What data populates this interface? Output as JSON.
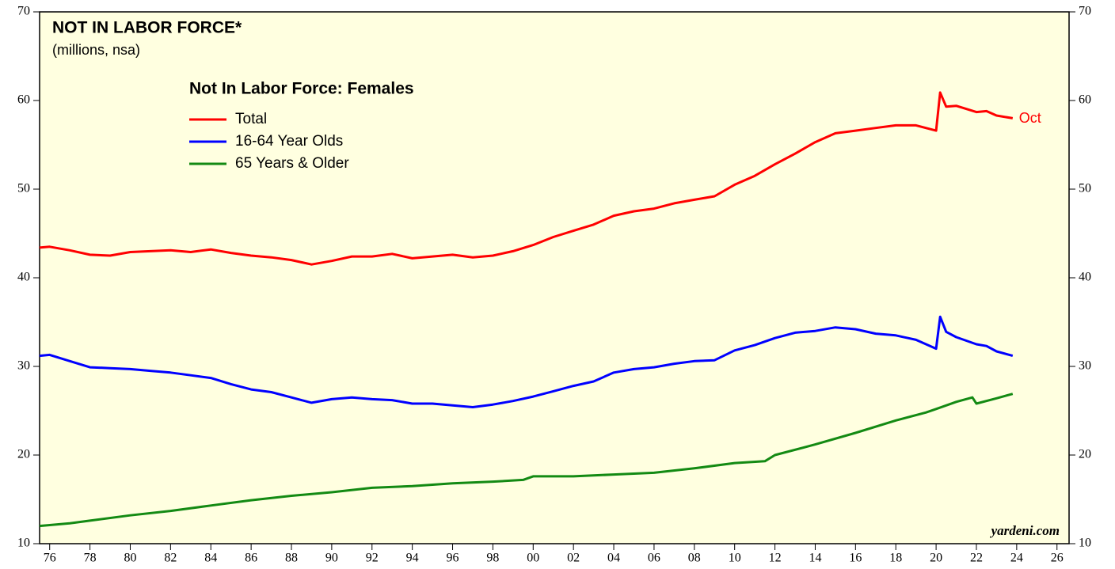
{
  "chart_data": {
    "type": "line",
    "title": "NOT IN LABOR FORCE*",
    "subtitle": "(millions, nsa)",
    "legend_title": "Not In Labor Force: Females",
    "annotation": "Oct",
    "source": "yardeni.com",
    "xlim": [
      1975.5,
      2026.6
    ],
    "ylim": [
      10,
      70
    ],
    "yticks": [
      10,
      20,
      30,
      40,
      50,
      60,
      70
    ],
    "xticks": [
      {
        "value": 1976,
        "label": "76"
      },
      {
        "value": 1978,
        "label": "78"
      },
      {
        "value": 1980,
        "label": "80"
      },
      {
        "value": 1982,
        "label": "82"
      },
      {
        "value": 1984,
        "label": "84"
      },
      {
        "value": 1986,
        "label": "86"
      },
      {
        "value": 1988,
        "label": "88"
      },
      {
        "value": 1990,
        "label": "90"
      },
      {
        "value": 1992,
        "label": "92"
      },
      {
        "value": 1994,
        "label": "94"
      },
      {
        "value": 1996,
        "label": "96"
      },
      {
        "value": 1998,
        "label": "98"
      },
      {
        "value": 2000,
        "label": "00"
      },
      {
        "value": 2002,
        "label": "02"
      },
      {
        "value": 2004,
        "label": "04"
      },
      {
        "value": 2006,
        "label": "06"
      },
      {
        "value": 2008,
        "label": "08"
      },
      {
        "value": 2010,
        "label": "10"
      },
      {
        "value": 2012,
        "label": "12"
      },
      {
        "value": 2014,
        "label": "14"
      },
      {
        "value": 2016,
        "label": "16"
      },
      {
        "value": 2018,
        "label": "18"
      },
      {
        "value": 2020,
        "label": "20"
      },
      {
        "value": 2022,
        "label": "22"
      },
      {
        "value": 2024,
        "label": "24"
      },
      {
        "value": 2026,
        "label": "26"
      }
    ],
    "series": [
      {
        "name": "Total",
        "color": "#ff0000",
        "x": [
          1975.5,
          1976,
          1977,
          1978,
          1979,
          1980,
          1981,
          1982,
          1983,
          1984,
          1985,
          1986,
          1987,
          1988,
          1989,
          1990,
          1991,
          1992,
          1993,
          1994,
          1995,
          1996,
          1997,
          1998,
          1999,
          2000,
          2001,
          2002,
          2003,
          2004,
          2005,
          2006,
          2007,
          2008,
          2009,
          2010,
          2011,
          2012,
          2013,
          2014,
          2015,
          2016,
          2017,
          2018,
          2019,
          2020,
          2020.2,
          2020.5,
          2021,
          2022,
          2022.5,
          2023,
          2023.8
        ],
        "values": [
          43.4,
          43.5,
          43.1,
          42.6,
          42.5,
          42.9,
          43.0,
          43.1,
          42.9,
          43.2,
          42.8,
          42.5,
          42.3,
          42.0,
          41.5,
          41.9,
          42.4,
          42.4,
          42.7,
          42.2,
          42.4,
          42.6,
          42.3,
          42.5,
          43.0,
          43.7,
          44.6,
          45.3,
          46.0,
          47.0,
          47.5,
          47.8,
          48.4,
          48.8,
          49.2,
          50.5,
          51.5,
          52.8,
          54.0,
          55.3,
          56.3,
          56.6,
          56.9,
          57.2,
          57.2,
          56.6,
          60.9,
          59.3,
          59.4,
          58.7,
          58.8,
          58.3,
          58.0
        ]
      },
      {
        "name": "16-64 Year Olds",
        "color": "#0000ff",
        "x": [
          1975.5,
          1976,
          1977,
          1978,
          1979,
          1980,
          1981,
          1982,
          1983,
          1984,
          1985,
          1986,
          1987,
          1988,
          1989,
          1990,
          1991,
          1992,
          1993,
          1994,
          1995,
          1996,
          1997,
          1998,
          1999,
          2000,
          2001,
          2002,
          2003,
          2004,
          2005,
          2006,
          2007,
          2008,
          2009,
          2010,
          2011,
          2012,
          2013,
          2014,
          2015,
          2016,
          2017,
          2018,
          2019,
          2020,
          2020.2,
          2020.5,
          2021,
          2022,
          2022.5,
          2023,
          2023.8
        ],
        "values": [
          31.2,
          31.3,
          30.6,
          29.9,
          29.8,
          29.7,
          29.5,
          29.3,
          29.0,
          28.7,
          28.0,
          27.4,
          27.1,
          26.5,
          25.9,
          26.3,
          26.5,
          26.3,
          26.2,
          25.8,
          25.8,
          25.6,
          25.4,
          25.7,
          26.1,
          26.6,
          27.2,
          27.8,
          28.3,
          29.3,
          29.7,
          29.9,
          30.3,
          30.6,
          30.7,
          31.8,
          32.4,
          33.2,
          33.8,
          34.0,
          34.4,
          34.2,
          33.7,
          33.5,
          33.0,
          32.0,
          35.6,
          33.9,
          33.3,
          32.5,
          32.3,
          31.7,
          31.2
        ]
      },
      {
        "name": "65 Years & Older",
        "color": "#138a13",
        "x": [
          1975.5,
          1977,
          1978,
          1980,
          1982,
          1984,
          1986,
          1988,
          1990,
          1992,
          1994,
          1996,
          1998,
          1999.5,
          2000,
          2002,
          2004,
          2006,
          2008,
          2010,
          2011.5,
          2012,
          2014,
          2016,
          2018,
          2019.5,
          2020,
          2021,
          2021.8,
          2022,
          2023,
          2023.8
        ],
        "values": [
          12.0,
          12.3,
          12.6,
          13.2,
          13.7,
          14.3,
          14.9,
          15.4,
          15.8,
          16.3,
          16.5,
          16.8,
          17.0,
          17.2,
          17.6,
          17.6,
          17.8,
          18.0,
          18.5,
          19.1,
          19.3,
          20.0,
          21.2,
          22.5,
          23.9,
          24.8,
          25.2,
          26.0,
          26.5,
          25.8,
          26.4,
          26.9
        ]
      }
    ]
  }
}
